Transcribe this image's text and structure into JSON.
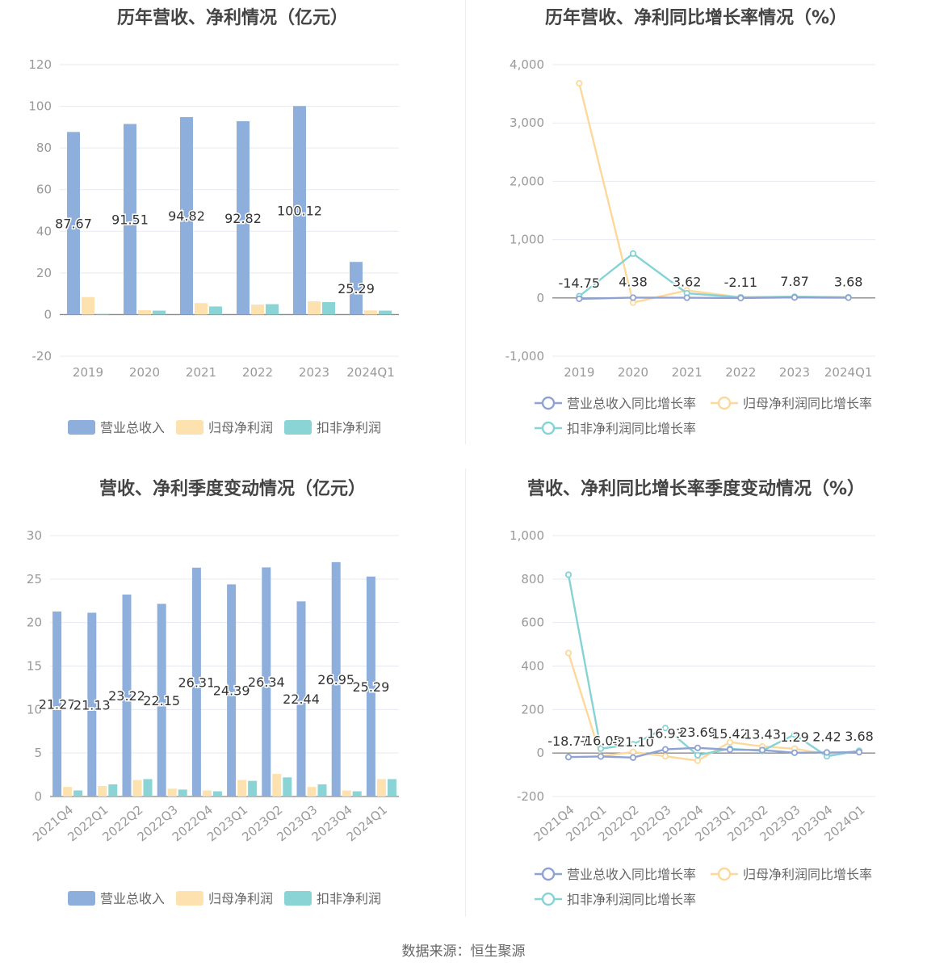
{
  "source_label": "数据来源：恒生聚源",
  "colors": {
    "revenue": "#8eaedb",
    "net_profit": "#fde2b0",
    "deducted_profit": "#8ad4d6",
    "revenue_line": "#8ea3d4",
    "net_profit_line": "#fdd89a",
    "deducted_line": "#86d3d6"
  },
  "chart_data": [
    {
      "type": "bar",
      "title": "历年营收、净利情况（亿元）",
      "categories": [
        "2019",
        "2020",
        "2021",
        "2022",
        "2023",
        "2024Q1"
      ],
      "ylim": [
        -20,
        120
      ],
      "yticks": [
        -20,
        0,
        20,
        40,
        60,
        80,
        100,
        120
      ],
      "grid": true,
      "legend_position": "bottom",
      "series": [
        {
          "name": "营业总收入",
          "values": [
            87.67,
            91.51,
            94.82,
            92.82,
            100.12,
            25.29
          ],
          "labels": [
            "87.67",
            "91.51",
            "94.82",
            "92.82",
            "100.12",
            "25.29"
          ]
        },
        {
          "name": "归母净利润",
          "values": [
            8.4,
            2.1,
            5.5,
            4.8,
            6.4,
            2.0
          ]
        },
        {
          "name": "扣非净利润",
          "values": [
            0.3,
            1.9,
            3.9,
            5.0,
            6.0,
            1.9
          ]
        }
      ]
    },
    {
      "type": "line",
      "title": "历年营收、净利同比增长率情况（%）",
      "categories": [
        "2019",
        "2020",
        "2021",
        "2022",
        "2023",
        "2024Q1"
      ],
      "ylim": [
        -1000,
        4000
      ],
      "yticks": [
        -1000,
        0,
        1000,
        2000,
        3000,
        4000
      ],
      "ytick_labels": [
        "-1,000",
        "0",
        "1,000",
        "2,000",
        "3,000",
        "4,000"
      ],
      "grid": true,
      "legend_position": "bottom",
      "series": [
        {
          "name": "营业总收入同比增长率",
          "values": [
            -14.75,
            4.38,
            3.62,
            -2.11,
            7.87,
            3.68
          ],
          "labels": [
            "-14.75",
            "4.38",
            "3.62",
            "-2.11",
            "7.87",
            "3.68"
          ]
        },
        {
          "name": "归母净利润同比增长率",
          "values": [
            3680,
            -80,
            130,
            10,
            20,
            10
          ]
        },
        {
          "name": "扣非净利润同比增长率",
          "values": [
            30,
            760,
            80,
            10,
            20,
            10
          ]
        }
      ]
    },
    {
      "type": "bar",
      "title": "营收、净利季度变动情况（亿元）",
      "categories": [
        "2021Q4",
        "2022Q1",
        "2022Q2",
        "2022Q3",
        "2022Q4",
        "2023Q1",
        "2023Q2",
        "2023Q3",
        "2023Q4",
        "2024Q1"
      ],
      "ylim": [
        0,
        30
      ],
      "yticks": [
        0,
        5,
        10,
        15,
        20,
        25,
        30
      ],
      "grid": true,
      "legend_position": "bottom",
      "series": [
        {
          "name": "营业总收入",
          "values": [
            21.27,
            21.13,
            23.22,
            22.15,
            26.31,
            24.39,
            26.34,
            22.44,
            26.95,
            25.29
          ],
          "labels": [
            "21.27",
            "21.13",
            "23.22",
            "22.15",
            "26.31",
            "24.39",
            "26.34",
            "22.44",
            "26.95",
            "25.29"
          ]
        },
        {
          "name": "归母净利润",
          "values": [
            1.1,
            1.2,
            1.9,
            0.9,
            0.7,
            1.9,
            2.6,
            1.1,
            0.7,
            2.0
          ]
        },
        {
          "name": "扣非净利润",
          "values": [
            0.7,
            1.4,
            2.0,
            0.8,
            0.6,
            1.8,
            2.2,
            1.4,
            0.6,
            2.0
          ]
        }
      ]
    },
    {
      "type": "line",
      "title": "营收、净利同比增长率季度变动情况（%）",
      "categories": [
        "2021Q4",
        "2022Q1",
        "2022Q2",
        "2022Q3",
        "2022Q4",
        "2023Q1",
        "2023Q2",
        "2023Q3",
        "2023Q4",
        "2024Q1"
      ],
      "ylim": [
        -200,
        1000
      ],
      "yticks": [
        -200,
        0,
        200,
        400,
        600,
        800,
        1000
      ],
      "ytick_labels": [
        "-200",
        "0",
        "200",
        "400",
        "600",
        "800",
        "1,000"
      ],
      "grid": true,
      "legend_position": "bottom",
      "series": [
        {
          "name": "营业总收入同比增长率",
          "values": [
            -18.77,
            -16.05,
            -21.1,
            16.93,
            23.69,
            15.42,
            13.43,
            1.29,
            2.42,
            3.68
          ],
          "labels": [
            "-18.77",
            "-16.05",
            "-21.10",
            "16.93",
            "23.69",
            "15.42",
            "13.43",
            "1.29",
            "2.42",
            "3.68"
          ]
        },
        {
          "name": "归母净利润同比增长率",
          "values": [
            460,
            -15,
            5,
            -15,
            -35,
            50,
            30,
            20,
            -5,
            10
          ]
        },
        {
          "name": "扣非净利润同比增长率",
          "values": [
            820,
            20,
            40,
            115,
            -10,
            20,
            10,
            85,
            -15,
            10
          ]
        }
      ]
    }
  ]
}
